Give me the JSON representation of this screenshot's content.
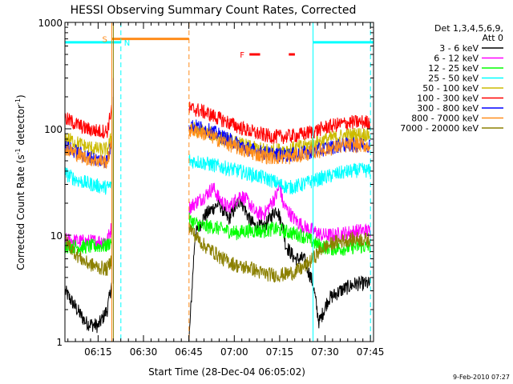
{
  "chart_data": {
    "type": "line",
    "title": "HESSI Observing Summary Count Rates, Corrected",
    "xlabel": "Start Time (28-Dec-04 06:05:02)",
    "ylabel_main": "Corrected Count Rate (s",
    "ylabel_sup1": "-1",
    "ylabel_mid": " detector",
    "ylabel_sup2": "-1",
    "ylabel_end": ")",
    "timestamp": "9-Feb-2010 07:27",
    "y_scale": "log",
    "ylim": [
      1,
      1000
    ],
    "xlim_minutes": [
      -1.0,
      101.0
    ],
    "y_ticks": [
      {
        "value": 1,
        "label": "1"
      },
      {
        "value": 10,
        "label": "10"
      },
      {
        "value": 100,
        "label": "100"
      },
      {
        "value": 1000,
        "label": "1000"
      }
    ],
    "x_ticks": [
      {
        "minute": 9.97,
        "label": "06:15"
      },
      {
        "minute": 24.97,
        "label": "06:30"
      },
      {
        "minute": 39.97,
        "label": "06:45"
      },
      {
        "minute": 54.97,
        "label": "07:00"
      },
      {
        "minute": 69.97,
        "label": "07:15"
      },
      {
        "minute": 84.97,
        "label": "07:30"
      },
      {
        "minute": 99.97,
        "label": "07:45"
      }
    ],
    "legend_header": [
      "Det 1,3,4,5,6,9,",
      "Att 0"
    ],
    "legend_position": "right",
    "series": [
      {
        "name": "3 - 6 keV",
        "color": "#000000",
        "points": [
          [
            -1,
            3
          ],
          [
            3,
            2
          ],
          [
            6,
            1.5
          ],
          [
            10,
            1.4
          ],
          [
            13,
            2
          ],
          [
            14.5,
            3.5
          ],
          [
            15,
            200
          ],
          [
            40,
            1
          ],
          [
            42,
            10
          ],
          [
            45,
            15
          ],
          [
            48,
            18
          ],
          [
            50,
            20
          ],
          [
            53,
            14
          ],
          [
            57,
            22
          ],
          [
            60,
            14
          ],
          [
            62,
            12
          ],
          [
            65,
            12
          ],
          [
            69,
            18
          ],
          [
            71,
            12
          ],
          [
            72,
            8
          ],
          [
            75,
            6
          ],
          [
            78,
            6
          ],
          [
            81,
            3.5
          ],
          [
            83,
            1.5
          ],
          [
            86,
            2.5
          ],
          [
            90,
            3
          ],
          [
            95,
            3.5
          ],
          [
            100,
            3.5
          ]
        ]
      },
      {
        "name": "6 - 12 keV",
        "color": "#ff00ff",
        "points": [
          [
            -1,
            9
          ],
          [
            3,
            8.8
          ],
          [
            6,
            8.7
          ],
          [
            10,
            8.8
          ],
          [
            13,
            9
          ],
          [
            14.5,
            12
          ],
          [
            15,
            300
          ],
          [
            40,
            18
          ],
          [
            42,
            20
          ],
          [
            45,
            23
          ],
          [
            48,
            28
          ],
          [
            50,
            22
          ],
          [
            53,
            18
          ],
          [
            57,
            24
          ],
          [
            60,
            20
          ],
          [
            62,
            16
          ],
          [
            65,
            16
          ],
          [
            69,
            24
          ],
          [
            70,
            30
          ],
          [
            71,
            20
          ],
          [
            72,
            18
          ],
          [
            75,
            14
          ],
          [
            78,
            12
          ],
          [
            81,
            11
          ],
          [
            84,
            10
          ],
          [
            88,
            10
          ],
          [
            92,
            10.5
          ],
          [
            96,
            11
          ],
          [
            100,
            11
          ]
        ]
      },
      {
        "name": "12 - 25 keV",
        "color": "#00ff00",
        "points": [
          [
            -1,
            8
          ],
          [
            3,
            7.8
          ],
          [
            6,
            7.8
          ],
          [
            10,
            7.9
          ],
          [
            13,
            8
          ],
          [
            14.5,
            9
          ],
          [
            15,
            150
          ],
          [
            40,
            14
          ],
          [
            42,
            13
          ],
          [
            45,
            12
          ],
          [
            48,
            12
          ],
          [
            50,
            11.5
          ],
          [
            53,
            11
          ],
          [
            56,
            10.5
          ],
          [
            59,
            11
          ],
          [
            62,
            11
          ],
          [
            65,
            11
          ],
          [
            68,
            11.5
          ],
          [
            71,
            11
          ],
          [
            74,
            10.5
          ],
          [
            77,
            10
          ],
          [
            80,
            9
          ],
          [
            83,
            8
          ],
          [
            87,
            7.5
          ],
          [
            91,
            7.5
          ],
          [
            95,
            7.8
          ],
          [
            100,
            7.8
          ]
        ]
      },
      {
        "name": "25 - 50 keV",
        "color": "#00ffff",
        "points": [
          [
            -1,
            38
          ],
          [
            3,
            33
          ],
          [
            6,
            31
          ],
          [
            10,
            29
          ],
          [
            13,
            28
          ],
          [
            14.5,
            30
          ],
          [
            40,
            50
          ],
          [
            43,
            49
          ],
          [
            46,
            47
          ],
          [
            49,
            45
          ],
          [
            52,
            43
          ],
          [
            55,
            41
          ],
          [
            58,
            39
          ],
          [
            61,
            37
          ],
          [
            64,
            35
          ],
          [
            67,
            33
          ],
          [
            70,
            30
          ],
          [
            73,
            28
          ],
          [
            76,
            29
          ],
          [
            79,
            31
          ],
          [
            82,
            33
          ],
          [
            85,
            35
          ],
          [
            88,
            37
          ],
          [
            91,
            39
          ],
          [
            94,
            40
          ],
          [
            97,
            41
          ],
          [
            100,
            40
          ]
        ]
      },
      {
        "name": "50 - 100 keV",
        "color": "#ccbb00",
        "points": [
          [
            -1,
            82
          ],
          [
            3,
            74
          ],
          [
            6,
            68
          ],
          [
            10,
            64
          ],
          [
            13,
            64
          ],
          [
            14.5,
            85
          ],
          [
            40,
            102
          ],
          [
            43,
            98
          ],
          [
            46,
            92
          ],
          [
            49,
            86
          ],
          [
            52,
            80
          ],
          [
            55,
            74
          ],
          [
            58,
            70
          ],
          [
            61,
            66
          ],
          [
            64,
            64
          ],
          [
            67,
            63
          ],
          [
            70,
            63
          ],
          [
            73,
            64
          ],
          [
            76,
            67
          ],
          [
            79,
            70
          ],
          [
            82,
            74
          ],
          [
            85,
            79
          ],
          [
            88,
            83
          ],
          [
            91,
            86
          ],
          [
            94,
            88
          ],
          [
            97,
            89
          ],
          [
            100,
            88
          ]
        ]
      },
      {
        "name": "100 - 300 keV",
        "color": "#ff0000",
        "points": [
          [
            -1,
            125
          ],
          [
            3,
            110
          ],
          [
            6,
            100
          ],
          [
            10,
            95
          ],
          [
            13,
            95
          ],
          [
            14.5,
            160
          ],
          [
            40,
            155
          ],
          [
            43,
            150
          ],
          [
            46,
            140
          ],
          [
            49,
            128
          ],
          [
            52,
            118
          ],
          [
            55,
            108
          ],
          [
            58,
            100
          ],
          [
            61,
            93
          ],
          [
            64,
            88
          ],
          [
            67,
            85
          ],
          [
            70,
            84
          ],
          [
            73,
            85
          ],
          [
            76,
            87
          ],
          [
            79,
            91
          ],
          [
            82,
            96
          ],
          [
            85,
            103
          ],
          [
            88,
            108
          ],
          [
            91,
            112
          ],
          [
            94,
            115
          ],
          [
            97,
            116
          ],
          [
            100,
            115
          ]
        ]
      },
      {
        "name": "300 - 800 keV",
        "color": "#0000ff",
        "points": [
          [
            -1,
            68
          ],
          [
            3,
            60
          ],
          [
            6,
            55
          ],
          [
            10,
            51
          ],
          [
            13,
            50
          ],
          [
            14.5,
            75
          ],
          [
            40,
            108
          ],
          [
            43,
            104
          ],
          [
            46,
            98
          ],
          [
            49,
            90
          ],
          [
            52,
            82
          ],
          [
            55,
            75
          ],
          [
            58,
            68
          ],
          [
            61,
            63
          ],
          [
            64,
            60
          ],
          [
            67,
            58
          ],
          [
            70,
            57
          ],
          [
            73,
            57
          ],
          [
            76,
            58
          ],
          [
            79,
            60
          ],
          [
            82,
            62
          ],
          [
            85,
            65
          ],
          [
            88,
            68
          ],
          [
            91,
            70
          ],
          [
            94,
            71
          ],
          [
            97,
            71
          ],
          [
            100,
            70
          ]
        ]
      },
      {
        "name": "800 - 7000 keV",
        "color": "#ff8c1a",
        "points": [
          [
            -1,
            66
          ],
          [
            3,
            58
          ],
          [
            6,
            53
          ],
          [
            10,
            50
          ],
          [
            13,
            49
          ],
          [
            14.5,
            72
          ],
          [
            40,
            98
          ],
          [
            43,
            94
          ],
          [
            46,
            88
          ],
          [
            49,
            81
          ],
          [
            52,
            74
          ],
          [
            55,
            68
          ],
          [
            58,
            63
          ],
          [
            61,
            59
          ],
          [
            64,
            56
          ],
          [
            67,
            54
          ],
          [
            70,
            54
          ],
          [
            73,
            54
          ],
          [
            76,
            56
          ],
          [
            79,
            58
          ],
          [
            82,
            61
          ],
          [
            85,
            64
          ],
          [
            88,
            67
          ],
          [
            91,
            69
          ],
          [
            94,
            70
          ],
          [
            97,
            70
          ],
          [
            100,
            69
          ]
        ]
      },
      {
        "name": "7000 - 20000 keV",
        "color": "#8b8000",
        "points": [
          [
            -1,
            9
          ],
          [
            3,
            6.5
          ],
          [
            6,
            5.5
          ],
          [
            10,
            5
          ],
          [
            13,
            4.8
          ],
          [
            14.5,
            6
          ],
          [
            15,
            120
          ],
          [
            40,
            12
          ],
          [
            42,
            10
          ],
          [
            45,
            8
          ],
          [
            48,
            7
          ],
          [
            51,
            6
          ],
          [
            54,
            5.5
          ],
          [
            57,
            5
          ],
          [
            60,
            5
          ],
          [
            63,
            4.5
          ],
          [
            66,
            4.3
          ],
          [
            69,
            4.2
          ],
          [
            72,
            4.3
          ],
          [
            75,
            4.5
          ],
          [
            78,
            5
          ],
          [
            81,
            6
          ],
          [
            84,
            7.5
          ],
          [
            88,
            8.5
          ],
          [
            92,
            9
          ],
          [
            96,
            9.2
          ],
          [
            100,
            9
          ]
        ]
      }
    ],
    "flags": [
      {
        "label": "S",
        "color": "#ff8c1a",
        "y_value": 700,
        "start": 14.5,
        "end": 40
      },
      {
        "label": "N",
        "color": "#00ffff",
        "y_value": 650,
        "start": -1,
        "end": 17.5
      },
      {
        "label": "N",
        "color": "#00ffff",
        "y_value": 650,
        "start": 81,
        "end": 101
      },
      {
        "label": "F",
        "color": "#ff0000",
        "y_value": 500,
        "start": 60,
        "end": 63.5
      },
      {
        "label": "F",
        "color": "#ff0000",
        "y_value": 500,
        "start": 73,
        "end": 75
      }
    ],
    "vlines": [
      {
        "minute": 14.5,
        "color": "#ff8c1a",
        "style": "solid"
      },
      {
        "minute": 15.0,
        "color": "#8b8000",
        "style": "solid"
      },
      {
        "minute": 17.5,
        "color": "#00ffff",
        "style": "dashed"
      },
      {
        "minute": 40.0,
        "color": "#ff8c1a",
        "style": "dashed"
      },
      {
        "minute": 81.0,
        "color": "#00ffff",
        "style": "solid"
      },
      {
        "minute": 100.0,
        "color": "#00ffff",
        "style": "dashed"
      }
    ]
  }
}
